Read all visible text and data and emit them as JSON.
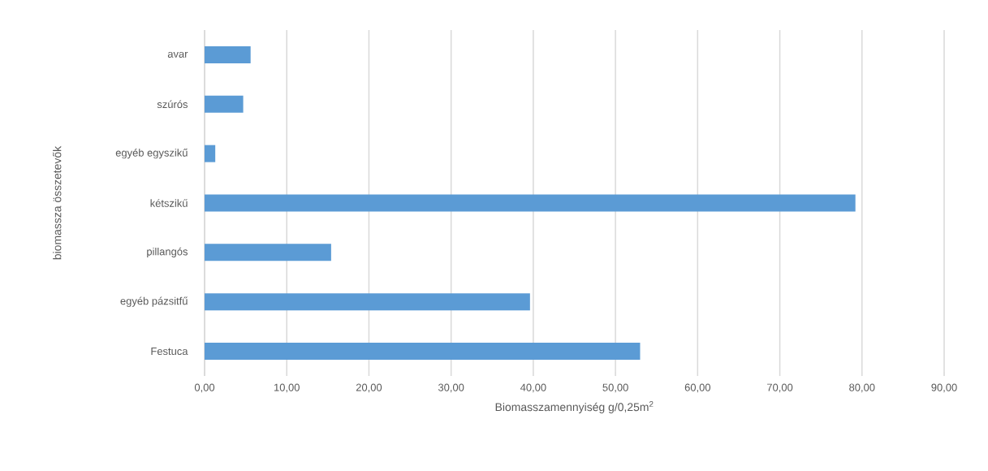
{
  "chart_data": {
    "type": "bar",
    "orientation": "horizontal",
    "categories": [
      "avar",
      "szúrós",
      "egyéb egyszikű",
      "kétszikű",
      "pillangós",
      "egyéb pázsitfű",
      "Festuca"
    ],
    "values": [
      5.6,
      4.7,
      1.3,
      79.2,
      15.4,
      39.6,
      53.0
    ],
    "color": "#5b9bd5",
    "xlabel": "Biomasszamennyiség g/0,25m$^{2}$",
    "ylabel": "biomassza összetevők",
    "xlim": [
      0,
      90
    ],
    "xticks": [
      {
        "value": 0,
        "label": "0,00"
      },
      {
        "value": 10,
        "label": "10,00"
      },
      {
        "value": 20,
        "label": "20,00"
      },
      {
        "value": 30,
        "label": "30,00"
      },
      {
        "value": 40,
        "label": "40,00"
      },
      {
        "value": 50,
        "label": "50,00"
      },
      {
        "value": 60,
        "label": "60,00"
      },
      {
        "value": 70,
        "label": "70,00"
      },
      {
        "value": 80,
        "label": "80,00"
      },
      {
        "value": 90,
        "label": "90,00"
      }
    ],
    "grid": "x"
  }
}
